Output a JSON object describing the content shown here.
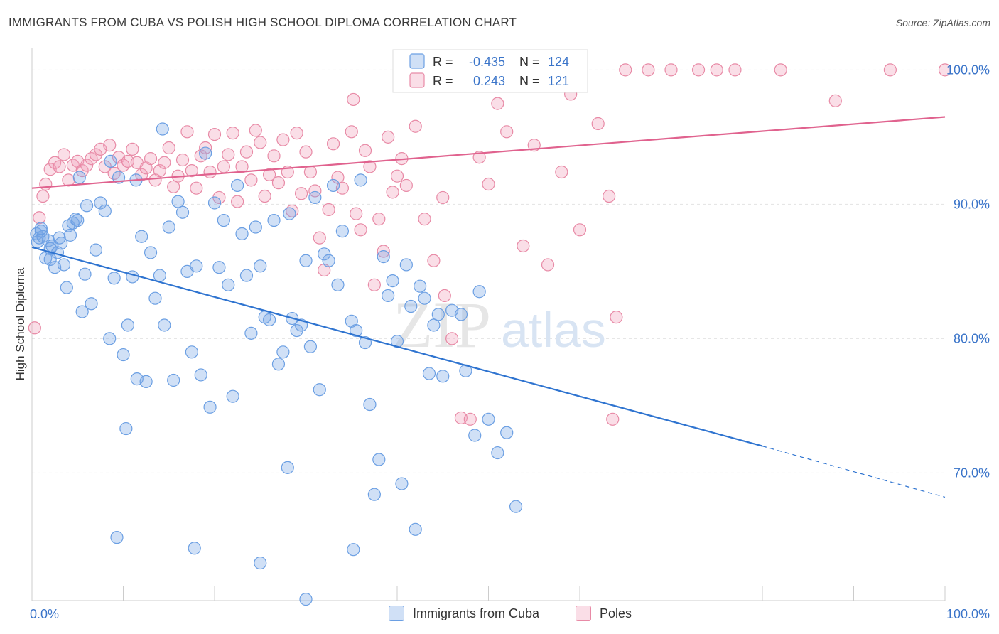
{
  "title": "IMMIGRANTS FROM CUBA VS POLISH HIGH SCHOOL DIPLOMA CORRELATION CHART",
  "source": "Source: ZipAtlas.com",
  "watermark": {
    "zip": "ZIP",
    "atlas": "atlas"
  },
  "colors": {
    "blue": "#6b9fe3",
    "blue_fill": "rgba(120,166,230,0.35)",
    "blue_line": "#2f74d0",
    "pink": "#e88aa6",
    "pink_fill": "rgba(240,160,185,0.35)",
    "pink_line": "#e0628e",
    "axis_label_blue": "#3a74c9"
  },
  "stats": {
    "blue": {
      "r_label": "R =",
      "r_value": "-0.435",
      "n_label": "N =",
      "n_value": "124"
    },
    "pink": {
      "r_label": "R =",
      "r_value": "0.243",
      "n_label": "N =",
      "n_value": "121"
    }
  },
  "legend": {
    "blue": "Immigrants from Cuba",
    "pink": "Poles"
  },
  "chart_data": {
    "type": "scatter",
    "title": "IMMIGRANTS FROM CUBA VS POLISH HIGH SCHOOL DIPLOMA CORRELATION CHART",
    "xlabel": "",
    "ylabel": "High School Diploma",
    "xlim": [
      0,
      100
    ],
    "ylim": [
      60.5,
      101.5
    ],
    "x_tick_labels": [
      "0.0%",
      "100.0%"
    ],
    "y_ticks": [
      {
        "value": 70,
        "label": "70.0%"
      },
      {
        "value": 80,
        "label": "80.0%"
      },
      {
        "value": 90,
        "label": "90.0%"
      },
      {
        "value": 100,
        "label": "100.0%"
      }
    ],
    "grid": true,
    "series": [
      {
        "name": "Immigrants from Cuba",
        "trend": {
          "x0": 0,
          "y0": 86.8,
          "x1": 80,
          "y1": 72.0,
          "dash_to_x": 100,
          "dash_to_y": 68.2
        },
        "points": [
          [
            0.5,
            87.8
          ],
          [
            0.6,
            87.2
          ],
          [
            0.8,
            87.5
          ],
          [
            1.0,
            88.0
          ],
          [
            1.2,
            87.6
          ],
          [
            1.5,
            86.0
          ],
          [
            1.8,
            87.3
          ],
          [
            2.0,
            86.7
          ],
          [
            2.2,
            86.9
          ],
          [
            2.5,
            85.3
          ],
          [
            2.8,
            86.4
          ],
          [
            3.2,
            87.1
          ],
          [
            3.5,
            85.5
          ],
          [
            3.8,
            83.8
          ],
          [
            4.0,
            88.4
          ],
          [
            4.2,
            87.7
          ],
          [
            4.5,
            88.6
          ],
          [
            4.8,
            88.9
          ],
          [
            5.0,
            88.8
          ],
          [
            5.2,
            92.0
          ],
          [
            5.5,
            82.0
          ],
          [
            5.8,
            84.8
          ],
          [
            6.0,
            89.9
          ],
          [
            6.5,
            82.6
          ],
          [
            7.0,
            86.6
          ],
          [
            7.5,
            90.1
          ],
          [
            8.0,
            89.5
          ],
          [
            8.5,
            80.0
          ],
          [
            9.0,
            84.5
          ],
          [
            9.5,
            92.0
          ],
          [
            10.0,
            78.8
          ],
          [
            10.5,
            81.0
          ],
          [
            11.0,
            84.6
          ],
          [
            11.5,
            77.0
          ],
          [
            12.0,
            87.6
          ],
          [
            12.5,
            76.8
          ],
          [
            13.0,
            86.4
          ],
          [
            13.5,
            83.0
          ],
          [
            14.0,
            84.7
          ],
          [
            14.5,
            81.0
          ],
          [
            15.0,
            88.3
          ],
          [
            15.5,
            76.9
          ],
          [
            16.0,
            90.2
          ],
          [
            16.5,
            89.4
          ],
          [
            17.0,
            85.0
          ],
          [
            17.5,
            79.0
          ],
          [
            18.0,
            85.4
          ],
          [
            18.5,
            77.3
          ],
          [
            19.0,
            93.8
          ],
          [
            19.5,
            74.9
          ],
          [
            20.0,
            90.1
          ],
          [
            20.5,
            85.3
          ],
          [
            21.0,
            88.8
          ],
          [
            21.5,
            84.0
          ],
          [
            22.0,
            75.7
          ],
          [
            22.5,
            91.4
          ],
          [
            23.0,
            87.8
          ],
          [
            23.5,
            84.7
          ],
          [
            24.0,
            80.4
          ],
          [
            24.5,
            88.3
          ],
          [
            25.0,
            85.4
          ],
          [
            25.5,
            81.6
          ],
          [
            26.0,
            81.4
          ],
          [
            26.5,
            88.8
          ],
          [
            27.0,
            78.1
          ],
          [
            27.5,
            79.0
          ],
          [
            28.0,
            70.4
          ],
          [
            28.5,
            81.5
          ],
          [
            29.0,
            80.6
          ],
          [
            29.5,
            81.0
          ],
          [
            30.0,
            85.8
          ],
          [
            30.5,
            79.4
          ],
          [
            31.0,
            90.5
          ],
          [
            31.5,
            76.2
          ],
          [
            32.0,
            86.3
          ],
          [
            32.5,
            85.8
          ],
          [
            33.0,
            91.4
          ],
          [
            33.5,
            84.0
          ],
          [
            34.0,
            88.0
          ],
          [
            35.0,
            81.3
          ],
          [
            35.5,
            80.6
          ],
          [
            36.0,
            91.8
          ],
          [
            36.5,
            79.7
          ],
          [
            37.0,
            75.1
          ],
          [
            37.5,
            68.4
          ],
          [
            38.0,
            71.0
          ],
          [
            38.5,
            86.1
          ],
          [
            39.0,
            83.2
          ],
          [
            39.5,
            84.3
          ],
          [
            40.0,
            79.8
          ],
          [
            40.5,
            69.2
          ],
          [
            41.0,
            85.5
          ],
          [
            41.5,
            82.4
          ],
          [
            42.0,
            65.8
          ],
          [
            42.5,
            83.9
          ],
          [
            43.0,
            83.0
          ],
          [
            43.5,
            77.4
          ],
          [
            44.0,
            81.0
          ],
          [
            44.5,
            81.8
          ],
          [
            45.0,
            77.2
          ],
          [
            46.0,
            82.1
          ],
          [
            47.0,
            81.8
          ],
          [
            47.5,
            77.6
          ],
          [
            48.5,
            72.8
          ],
          [
            49.0,
            83.5
          ],
          [
            50.0,
            74.0
          ],
          [
            51.0,
            71.5
          ],
          [
            52.0,
            73.0
          ],
          [
            53.0,
            67.5
          ],
          [
            1.0,
            88.2
          ],
          [
            2.0,
            85.9
          ],
          [
            3.0,
            87.5
          ],
          [
            9.3,
            65.2
          ],
          [
            17.8,
            64.4
          ],
          [
            25.0,
            63.3
          ],
          [
            30.0,
            60.6
          ],
          [
            35.2,
            64.3
          ],
          [
            10.3,
            73.3
          ],
          [
            8.6,
            93.2
          ],
          [
            11.4,
            91.8
          ],
          [
            14.3,
            95.6
          ],
          [
            28.2,
            89.3
          ]
        ]
      },
      {
        "name": "Poles",
        "trend": {
          "x0": 0,
          "y0": 91.2,
          "x1": 100,
          "y1": 96.5
        },
        "points": [
          [
            0.3,
            80.8
          ],
          [
            0.8,
            89.0
          ],
          [
            1.2,
            90.6
          ],
          [
            1.5,
            91.5
          ],
          [
            2.0,
            92.6
          ],
          [
            2.5,
            93.1
          ],
          [
            3.0,
            92.8
          ],
          [
            3.5,
            93.7
          ],
          [
            4.0,
            91.8
          ],
          [
            4.5,
            92.9
          ],
          [
            5.0,
            93.2
          ],
          [
            5.5,
            92.5
          ],
          [
            6.0,
            92.9
          ],
          [
            6.5,
            93.4
          ],
          [
            7.0,
            93.7
          ],
          [
            7.5,
            94.1
          ],
          [
            8.0,
            92.8
          ],
          [
            8.5,
            94.4
          ],
          [
            9.0,
            92.3
          ],
          [
            9.5,
            93.5
          ],
          [
            10.0,
            92.9
          ],
          [
            10.5,
            93.2
          ],
          [
            11.0,
            94.1
          ],
          [
            11.5,
            93.1
          ],
          [
            12.0,
            92.2
          ],
          [
            12.5,
            92.7
          ],
          [
            13.0,
            93.4
          ],
          [
            13.5,
            91.8
          ],
          [
            14.0,
            92.5
          ],
          [
            14.5,
            93.1
          ],
          [
            15.0,
            94.2
          ],
          [
            15.5,
            91.3
          ],
          [
            16.0,
            92.1
          ],
          [
            16.5,
            93.3
          ],
          [
            17.0,
            95.4
          ],
          [
            17.5,
            92.5
          ],
          [
            18.0,
            91.2
          ],
          [
            18.5,
            93.6
          ],
          [
            19.0,
            94.2
          ],
          [
            19.5,
            92.4
          ],
          [
            20.0,
            95.2
          ],
          [
            20.5,
            90.5
          ],
          [
            21.0,
            92.8
          ],
          [
            21.5,
            93.7
          ],
          [
            22.0,
            95.3
          ],
          [
            22.5,
            90.2
          ],
          [
            23.0,
            92.8
          ],
          [
            23.5,
            93.9
          ],
          [
            24.0,
            91.8
          ],
          [
            24.5,
            95.5
          ],
          [
            25.0,
            94.6
          ],
          [
            25.5,
            90.6
          ],
          [
            26.0,
            92.2
          ],
          [
            26.5,
            93.6
          ],
          [
            27.0,
            91.6
          ],
          [
            27.5,
            94.8
          ],
          [
            28.0,
            92.4
          ],
          [
            28.5,
            89.5
          ],
          [
            29.0,
            95.3
          ],
          [
            29.5,
            90.8
          ],
          [
            30.0,
            93.9
          ],
          [
            30.5,
            92.4
          ],
          [
            31.0,
            91.0
          ],
          [
            31.5,
            87.5
          ],
          [
            32.0,
            85.1
          ],
          [
            32.5,
            89.6
          ],
          [
            33.0,
            94.5
          ],
          [
            33.5,
            92.0
          ],
          [
            34.0,
            91.2
          ],
          [
            35.0,
            95.4
          ],
          [
            35.5,
            89.3
          ],
          [
            36.0,
            88.1
          ],
          [
            36.5,
            94.0
          ],
          [
            37.0,
            92.8
          ],
          [
            37.5,
            84.0
          ],
          [
            38.0,
            88.9
          ],
          [
            38.5,
            86.5
          ],
          [
            39.0,
            95.0
          ],
          [
            39.5,
            90.9
          ],
          [
            40.0,
            92.1
          ],
          [
            40.5,
            93.4
          ],
          [
            41.0,
            91.4
          ],
          [
            42.0,
            95.8
          ],
          [
            43.0,
            88.9
          ],
          [
            44.0,
            85.8
          ],
          [
            45.0,
            90.5
          ],
          [
            46.0,
            80.0
          ],
          [
            47.0,
            74.1
          ],
          [
            48.0,
            74.0
          ],
          [
            49.0,
            93.5
          ],
          [
            50.0,
            91.5
          ],
          [
            51.0,
            97.5
          ],
          [
            52.0,
            95.4
          ],
          [
            55.0,
            94.4
          ],
          [
            58.0,
            92.4
          ],
          [
            60.0,
            88.1
          ],
          [
            62.0,
            96.0
          ],
          [
            65.0,
            100.0
          ],
          [
            67.5,
            100.0
          ],
          [
            70.0,
            100.0
          ],
          [
            73.0,
            100.0
          ],
          [
            75.0,
            100.0
          ],
          [
            77.0,
            100.0
          ],
          [
            82.0,
            100.0
          ],
          [
            88.0,
            97.7
          ],
          [
            94.0,
            100.0
          ],
          [
            100.0,
            100.0
          ],
          [
            41.5,
            100.0
          ],
          [
            43.0,
            98.8
          ],
          [
            55.0,
            99.8
          ],
          [
            57.5,
            99.5
          ],
          [
            59.0,
            98.2
          ],
          [
            56.5,
            85.5
          ],
          [
            45.2,
            83.2
          ],
          [
            53.8,
            86.9
          ],
          [
            63.2,
            90.6
          ],
          [
            63.6,
            74.0
          ],
          [
            64.0,
            81.6
          ],
          [
            35.2,
            97.8
          ]
        ]
      }
    ]
  }
}
